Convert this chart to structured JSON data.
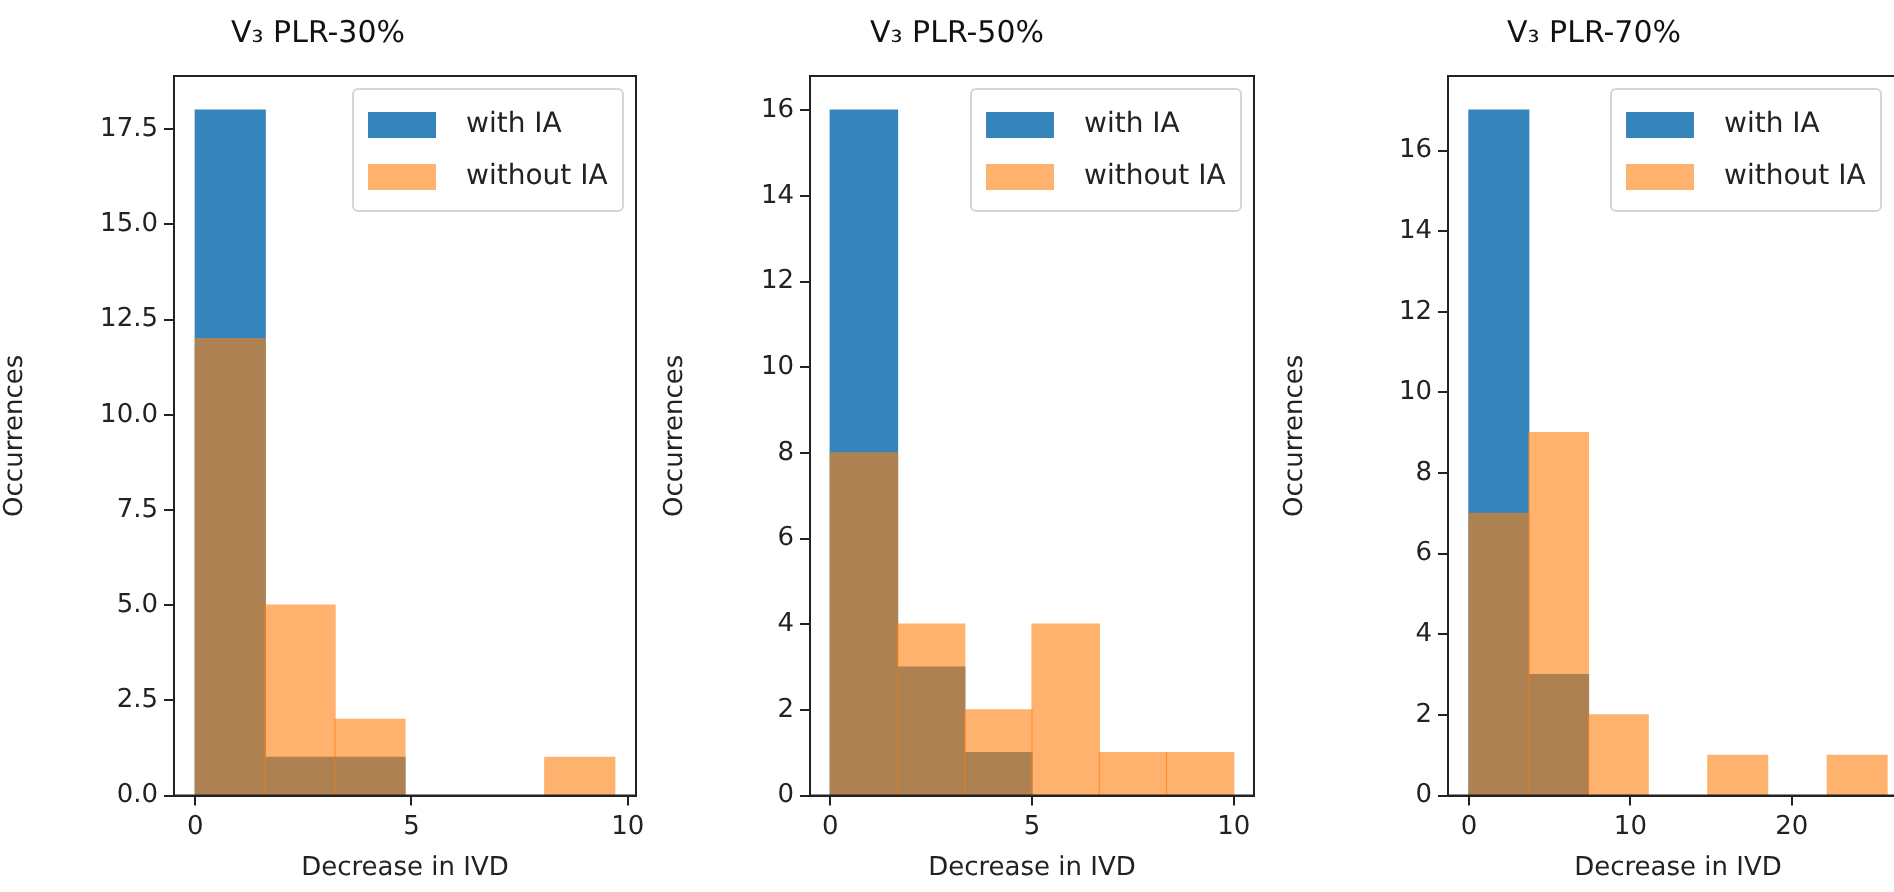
{
  "chart_data": [
    {
      "type": "histogram",
      "title": "V₃ PLR-30%",
      "xlabel": "Decrease in IVD",
      "ylabel": "Occurrences",
      "bins": [
        0,
        1.62,
        3.23,
        4.85,
        6.47,
        8.08,
        9.7
      ],
      "series": [
        {
          "name": "with IA",
          "color": "#1f77b4",
          "values": [
            18,
            1,
            1,
            0,
            0,
            0
          ]
        },
        {
          "name": "without IA",
          "color": "#ff7f0e",
          "values": [
            12,
            5,
            2,
            0,
            0,
            1
          ]
        }
      ],
      "xlim": [
        -0.49,
        10.19
      ],
      "xticks": [
        0,
        5,
        10
      ],
      "ylim": [
        0,
        18.9
      ],
      "yticks": [
        {
          "value": 0,
          "label": "0.0"
        },
        2.5,
        {
          "value": 5,
          "label": "5.0"
        },
        7.5,
        {
          "value": 10,
          "label": "10.0"
        },
        12.5,
        {
          "value": 15,
          "label": "15.0"
        },
        17.5
      ],
      "legend": "top right",
      "grid": false
    },
    {
      "type": "histogram",
      "title": "V₃ PLR-50%",
      "xlabel": "Decrease in IVD",
      "ylabel": "Occurrences",
      "bins": [
        0,
        1.67,
        3.33,
        5,
        6.67,
        8.33,
        10
      ],
      "series": [
        {
          "name": "with IA",
          "color": "#1f77b4",
          "values": [
            16,
            3,
            1,
            0,
            0,
            0
          ]
        },
        {
          "name": "without IA",
          "color": "#ff7f0e",
          "values": [
            8,
            4,
            2,
            4,
            1,
            1
          ]
        }
      ],
      "xlim": [
        -0.5,
        10.5
      ],
      "xticks": [
        0,
        5,
        10
      ],
      "ylim": [
        0,
        16.8
      ],
      "yticks": [
        0,
        2,
        4,
        6,
        8,
        10,
        12,
        14,
        16
      ],
      "legend": "top right",
      "grid": false
    },
    {
      "type": "histogram",
      "title": "V₃ PLR-70%",
      "xlabel": "Decrease in IVD",
      "ylabel": "Occurrences",
      "bins": [
        0,
        3.7,
        7.4,
        11.1,
        14.8,
        18.5,
        22.2,
        25.9
      ],
      "series": [
        {
          "name": "with IA",
          "color": "#1f77b4",
          "values": [
            17,
            3,
            0,
            0,
            0,
            0,
            0
          ]
        },
        {
          "name": "without IA",
          "color": "#ff7f0e",
          "values": [
            7,
            9,
            2,
            0,
            1,
            0,
            1
          ]
        }
      ],
      "xlim": [
        -1.3,
        27.2
      ],
      "xticks": [
        0,
        10,
        20
      ],
      "ylim": [
        0,
        17.85
      ],
      "yticks": [
        0,
        2,
        4,
        6,
        8,
        10,
        12,
        14,
        16
      ],
      "legend": "top right",
      "grid": false
    }
  ]
}
